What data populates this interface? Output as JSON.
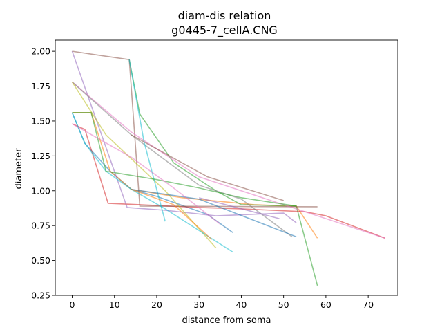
{
  "chart_data": {
    "type": "line",
    "title": "diam-dis relation",
    "subtitle": "g0445-7_cellA.CNG",
    "xlabel": "distance from soma",
    "ylabel": "diameter",
    "xlim": [
      -4,
      77
    ],
    "ylim": [
      0.25,
      2.08
    ],
    "xticks": [
      0,
      10,
      20,
      30,
      40,
      50,
      60,
      70
    ],
    "yticks": [
      0.25,
      0.5,
      0.75,
      1.0,
      1.25,
      1.5,
      1.75,
      2.0
    ],
    "grid": false,
    "series": [
      {
        "color": "#1f77b4",
        "x": [
          0,
          3,
          9,
          14,
          20,
          32,
          38
        ],
        "y": [
          1.56,
          1.34,
          1.14,
          1.01,
          0.96,
          0.83,
          0.7
        ]
      },
      {
        "color": "#ff7f0e",
        "x": [
          0,
          4.5,
          9,
          14,
          26,
          43,
          52,
          53,
          58
        ],
        "y": [
          1.56,
          1.56,
          1.14,
          1.01,
          0.95,
          0.9,
          0.89,
          0.89,
          0.66
        ]
      },
      {
        "color": "#2ca02c",
        "x": [
          13.5,
          16,
          24,
          34,
          40,
          53,
          58
        ],
        "y": [
          1.94,
          1.55,
          1.2,
          1.0,
          0.9,
          0.89,
          0.32
        ]
      },
      {
        "color": "#d62728",
        "x": [
          0,
          3,
          8.5,
          16,
          30,
          40,
          55,
          60,
          74
        ],
        "y": [
          1.48,
          1.44,
          0.91,
          0.9,
          0.88,
          0.87,
          0.85,
          0.82,
          0.66
        ]
      },
      {
        "color": "#9467bd",
        "x": [
          0,
          13,
          22,
          34,
          50,
          53
        ],
        "y": [
          2.0,
          0.88,
          0.86,
          0.82,
          0.84,
          0.77
        ]
      },
      {
        "color": "#8c564b",
        "x": [
          0,
          13.5,
          16,
          58
        ],
        "y": [
          2.0,
          1.94,
          0.89,
          0.885
        ]
      },
      {
        "color": "#e377c2",
        "x": [
          0,
          14,
          30,
          55,
          74
        ],
        "y": [
          1.78,
          1.42,
          1.1,
          0.85,
          0.66
        ]
      },
      {
        "color": "#7f7f7f",
        "x": [
          0,
          14,
          30,
          40,
          52
        ],
        "y": [
          1.78,
          1.4,
          1.04,
          0.94,
          0.67
        ]
      },
      {
        "color": "#bcbd22",
        "x": [
          0,
          8,
          22,
          34
        ],
        "y": [
          1.78,
          1.4,
          1.0,
          0.59
        ]
      },
      {
        "color": "#17becf",
        "x": [
          0,
          3,
          8,
          14,
          22,
          38
        ],
        "y": [
          1.56,
          1.34,
          1.14,
          1.01,
          0.87,
          0.56
        ]
      },
      {
        "color": "#17becf",
        "x": [
          13.5,
          17,
          22
        ],
        "y": [
          1.94,
          1.35,
          0.78
        ]
      },
      {
        "color": "#1f77b4",
        "x": [
          14,
          30,
          53
        ],
        "y": [
          1.01,
          0.94,
          0.67
        ]
      },
      {
        "color": "#ff7f0e",
        "x": [
          14,
          24,
          33
        ],
        "y": [
          1.01,
          0.9,
          0.65
        ]
      },
      {
        "color": "#2ca02c",
        "x": [
          0,
          4.5,
          8,
          20,
          30,
          40,
          53
        ],
        "y": [
          1.56,
          1.56,
          1.14,
          1.08,
          1.02,
          0.95,
          0.89
        ]
      },
      {
        "color": "#9467bd",
        "x": [
          30,
          49
        ],
        "y": [
          0.95,
          0.8
        ]
      },
      {
        "color": "#e377c2",
        "x": [
          0,
          14,
          24,
          35
        ],
        "y": [
          1.48,
          1.24,
          1.02,
          0.76
        ]
      },
      {
        "color": "#8c564b",
        "x": [
          14,
          32,
          50
        ],
        "y": [
          1.4,
          1.1,
          0.93
        ]
      }
    ]
  }
}
